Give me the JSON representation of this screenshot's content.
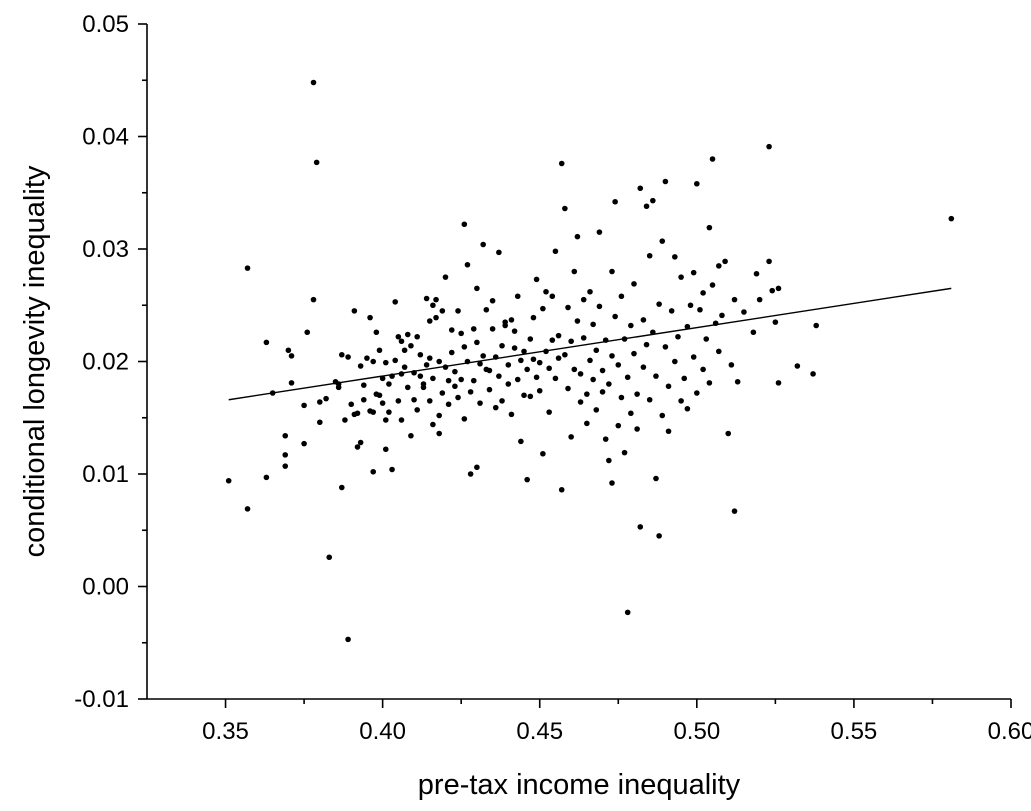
{
  "chart_data": {
    "type": "scatter",
    "title": "",
    "xlabel": "pre-tax income inequality",
    "ylabel": "conditional longevity inequality",
    "xlim": [
      0.325,
      0.6
    ],
    "ylim": [
      -0.01,
      0.05
    ],
    "x_ticks": [
      "0.35",
      "0.40",
      "0.45",
      "0.50",
      "0.55",
      "0.60"
    ],
    "x_tick_values": [
      0.35,
      0.4,
      0.45,
      0.5,
      0.55,
      0.6
    ],
    "y_ticks": [
      "-0.01",
      "0.00",
      "0.01",
      "0.02",
      "0.03",
      "0.04",
      "0.05"
    ],
    "y_tick_values": [
      -0.01,
      0.0,
      0.01,
      0.02,
      0.03,
      0.04,
      0.05
    ],
    "grid": false,
    "legend": "none",
    "fit_line": {
      "x": [
        0.351,
        0.581
      ],
      "y": [
        0.0166,
        0.0265
      ]
    },
    "points": [
      [
        0.351,
        0.0094
      ],
      [
        0.357,
        0.0069
      ],
      [
        0.357,
        0.0283
      ],
      [
        0.363,
        0.0097
      ],
      [
        0.363,
        0.0217
      ],
      [
        0.365,
        0.0172
      ],
      [
        0.369,
        0.0107
      ],
      [
        0.369,
        0.0117
      ],
      [
        0.369,
        0.0134
      ],
      [
        0.37,
        0.021
      ],
      [
        0.371,
        0.0205
      ],
      [
        0.371,
        0.0181
      ],
      [
        0.375,
        0.0161
      ],
      [
        0.375,
        0.0127
      ],
      [
        0.376,
        0.0226
      ],
      [
        0.378,
        0.0448
      ],
      [
        0.378,
        0.0255
      ],
      [
        0.379,
        0.0377
      ],
      [
        0.38,
        0.0146
      ],
      [
        0.38,
        0.0164
      ],
      [
        0.382,
        0.0167
      ],
      [
        0.383,
        0.0026
      ],
      [
        0.385,
        0.0182
      ],
      [
        0.386,
        0.018
      ],
      [
        0.386,
        0.0177
      ],
      [
        0.387,
        0.0088
      ],
      [
        0.387,
        0.0206
      ],
      [
        0.388,
        0.0148
      ],
      [
        0.389,
        -0.0047
      ],
      [
        0.389,
        0.0204
      ],
      [
        0.39,
        0.0162
      ],
      [
        0.391,
        0.0153
      ],
      [
        0.391,
        0.0245
      ],
      [
        0.392,
        0.0124
      ],
      [
        0.392,
        0.0154
      ],
      [
        0.393,
        0.0196
      ],
      [
        0.393,
        0.0128
      ],
      [
        0.394,
        0.0179
      ],
      [
        0.394,
        0.0166
      ],
      [
        0.395,
        0.0203
      ],
      [
        0.396,
        0.0156
      ],
      [
        0.396,
        0.0239
      ],
      [
        0.397,
        0.0155
      ],
      [
        0.397,
        0.0102
      ],
      [
        0.397,
        0.02
      ],
      [
        0.398,
        0.0226
      ],
      [
        0.398,
        0.0171
      ],
      [
        0.399,
        0.017
      ],
      [
        0.399,
        0.021
      ],
      [
        0.4,
        0.0163
      ],
      [
        0.4,
        0.0185
      ],
      [
        0.401,
        0.0148
      ],
      [
        0.401,
        0.0199
      ],
      [
        0.401,
        0.0122
      ],
      [
        0.402,
        0.018
      ],
      [
        0.402,
        0.0155
      ],
      [
        0.403,
        0.0187
      ],
      [
        0.403,
        0.0104
      ],
      [
        0.404,
        0.0201
      ],
      [
        0.404,
        0.0253
      ],
      [
        0.405,
        0.0165
      ],
      [
        0.405,
        0.0222
      ],
      [
        0.406,
        0.0189
      ],
      [
        0.406,
        0.0218
      ],
      [
        0.406,
        0.0148
      ],
      [
        0.407,
        0.0195
      ],
      [
        0.407,
        0.021
      ],
      [
        0.408,
        0.0224
      ],
      [
        0.408,
        0.0177
      ],
      [
        0.409,
        0.0214
      ],
      [
        0.409,
        0.0134
      ],
      [
        0.41,
        0.019
      ],
      [
        0.41,
        0.0166
      ],
      [
        0.411,
        0.0157
      ],
      [
        0.411,
        0.0222
      ],
      [
        0.412,
        0.0187
      ],
      [
        0.412,
        0.0206
      ],
      [
        0.413,
        0.018
      ],
      [
        0.413,
        0.0177
      ],
      [
        0.414,
        0.0197
      ],
      [
        0.414,
        0.0256
      ],
      [
        0.415,
        0.0165
      ],
      [
        0.415,
        0.0203
      ],
      [
        0.415,
        0.0236
      ],
      [
        0.416,
        0.0144
      ],
      [
        0.416,
        0.025
      ],
      [
        0.416,
        0.0185
      ],
      [
        0.417,
        0.0255
      ],
      [
        0.417,
        0.0239
      ],
      [
        0.418,
        0.0152
      ],
      [
        0.418,
        0.02
      ],
      [
        0.418,
        0.0136
      ],
      [
        0.419,
        0.0172
      ],
      [
        0.419,
        0.0245
      ],
      [
        0.42,
        0.0195
      ],
      [
        0.42,
        0.0275
      ],
      [
        0.421,
        0.0183
      ],
      [
        0.421,
        0.0162
      ],
      [
        0.422,
        0.0208
      ],
      [
        0.422,
        0.0228
      ],
      [
        0.423,
        0.0178
      ],
      [
        0.423,
        0.0191
      ],
      [
        0.424,
        0.0245
      ],
      [
        0.424,
        0.0168
      ],
      [
        0.425,
        0.0225
      ],
      [
        0.425,
        0.0184
      ],
      [
        0.426,
        0.0322
      ],
      [
        0.426,
        0.0149
      ],
      [
        0.426,
        0.0213
      ],
      [
        0.427,
        0.0286
      ],
      [
        0.427,
        0.02
      ],
      [
        0.428,
        0.0173
      ],
      [
        0.428,
        0.01
      ],
      [
        0.429,
        0.0229
      ],
      [
        0.429,
        0.0183
      ],
      [
        0.43,
        0.0106
      ],
      [
        0.43,
        0.0265
      ],
      [
        0.43,
        0.0217
      ],
      [
        0.431,
        0.0198
      ],
      [
        0.431,
        0.0163
      ],
      [
        0.432,
        0.0205
      ],
      [
        0.432,
        0.0304
      ],
      [
        0.433,
        0.0193
      ],
      [
        0.433,
        0.0246
      ],
      [
        0.434,
        0.0192
      ],
      [
        0.434,
        0.0175
      ],
      [
        0.435,
        0.0229
      ],
      [
        0.435,
        0.0254
      ],
      [
        0.436,
        0.0159
      ],
      [
        0.436,
        0.0204
      ],
      [
        0.437,
        0.0297
      ],
      [
        0.437,
        0.0187
      ],
      [
        0.438,
        0.0214
      ],
      [
        0.438,
        0.0165
      ],
      [
        0.439,
        0.0235
      ],
      [
        0.439,
        0.0232
      ],
      [
        0.44,
        0.018
      ],
      [
        0.44,
        0.0197
      ],
      [
        0.441,
        0.0237
      ],
      [
        0.441,
        0.0153
      ],
      [
        0.442,
        0.0212
      ],
      [
        0.442,
        0.0227
      ],
      [
        0.443,
        0.0184
      ],
      [
        0.443,
        0.0258
      ],
      [
        0.444,
        0.0129
      ],
      [
        0.444,
        0.0201
      ],
      [
        0.445,
        0.0209
      ],
      [
        0.445,
        0.017
      ],
      [
        0.446,
        0.0193
      ],
      [
        0.446,
        0.0095
      ],
      [
        0.447,
        0.022
      ],
      [
        0.447,
        0.0169
      ],
      [
        0.448,
        0.0202
      ],
      [
        0.448,
        0.0239
      ],
      [
        0.449,
        0.0186
      ],
      [
        0.449,
        0.0273
      ],
      [
        0.45,
        0.0199
      ],
      [
        0.45,
        0.0174
      ],
      [
        0.451,
        0.0118
      ],
      [
        0.451,
        0.0247
      ],
      [
        0.452,
        0.0209
      ],
      [
        0.452,
        0.0262
      ],
      [
        0.453,
        0.0194
      ],
      [
        0.453,
        0.0155
      ],
      [
        0.454,
        0.0219
      ],
      [
        0.454,
        0.0258
      ],
      [
        0.455,
        0.0298
      ],
      [
        0.455,
        0.0185
      ],
      [
        0.456,
        0.0203
      ],
      [
        0.456,
        0.0223
      ],
      [
        0.457,
        0.0086
      ],
      [
        0.457,
        0.0376
      ],
      [
        0.458,
        0.0336
      ],
      [
        0.458,
        0.0206
      ],
      [
        0.459,
        0.0176
      ],
      [
        0.459,
        0.0248
      ],
      [
        0.46,
        0.0133
      ],
      [
        0.46,
        0.0218
      ],
      [
        0.461,
        0.028
      ],
      [
        0.461,
        0.0193
      ],
      [
        0.462,
        0.0311
      ],
      [
        0.462,
        0.0236
      ],
      [
        0.463,
        0.0189
      ],
      [
        0.463,
        0.0164
      ],
      [
        0.464,
        0.0221
      ],
      [
        0.464,
        0.0255
      ],
      [
        0.465,
        0.0171
      ],
      [
        0.465,
        0.0145
      ],
      [
        0.466,
        0.0201
      ],
      [
        0.466,
        0.0262
      ],
      [
        0.467,
        0.0184
      ],
      [
        0.467,
        0.0233
      ],
      [
        0.468,
        0.021
      ],
      [
        0.468,
        0.0157
      ],
      [
        0.469,
        0.0315
      ],
      [
        0.469,
        0.0249
      ],
      [
        0.47,
        0.0192
      ],
      [
        0.47,
        0.0173
      ],
      [
        0.471,
        0.0219
      ],
      [
        0.471,
        0.0131
      ],
      [
        0.472,
        0.018
      ],
      [
        0.472,
        0.0112
      ],
      [
        0.473,
        0.028
      ],
      [
        0.473,
        0.0205
      ],
      [
        0.473,
        0.0092
      ],
      [
        0.474,
        0.0342
      ],
      [
        0.474,
        0.024
      ],
      [
        0.475,
        0.0143
      ],
      [
        0.475,
        0.0197
      ],
      [
        0.476,
        0.0168
      ],
      [
        0.476,
        0.0258
      ],
      [
        0.477,
        0.0119
      ],
      [
        0.477,
        0.022
      ],
      [
        0.478,
        -0.0023
      ],
      [
        0.478,
        0.0186
      ],
      [
        0.479,
        0.0232
      ],
      [
        0.479,
        0.0154
      ],
      [
        0.48,
        0.0269
      ],
      [
        0.48,
        0.0207
      ],
      [
        0.481,
        0.014
      ],
      [
        0.481,
        0.0171
      ],
      [
        0.482,
        0.0354
      ],
      [
        0.482,
        0.0053
      ],
      [
        0.483,
        0.0237
      ],
      [
        0.483,
        0.0195
      ],
      [
        0.484,
        0.0338
      ],
      [
        0.484,
        0.0215
      ],
      [
        0.485,
        0.0166
      ],
      [
        0.485,
        0.0294
      ],
      [
        0.486,
        0.0226
      ],
      [
        0.486,
        0.0343
      ],
      [
        0.487,
        0.0096
      ],
      [
        0.487,
        0.0187
      ],
      [
        0.488,
        0.0045
      ],
      [
        0.488,
        0.0251
      ],
      [
        0.489,
        0.0307
      ],
      [
        0.489,
        0.0152
      ],
      [
        0.49,
        0.036
      ],
      [
        0.49,
        0.0213
      ],
      [
        0.491,
        0.0178
      ],
      [
        0.491,
        0.0138
      ],
      [
        0.492,
        0.0245
      ],
      [
        0.493,
        0.0293
      ],
      [
        0.493,
        0.02
      ],
      [
        0.494,
        0.0222
      ],
      [
        0.495,
        0.0165
      ],
      [
        0.495,
        0.0275
      ],
      [
        0.496,
        0.0185
      ],
      [
        0.497,
        0.0231
      ],
      [
        0.497,
        0.0158
      ],
      [
        0.498,
        0.025
      ],
      [
        0.499,
        0.0279
      ],
      [
        0.499,
        0.0204
      ],
      [
        0.5,
        0.0358
      ],
      [
        0.5,
        0.0172
      ],
      [
        0.501,
        0.0246
      ],
      [
        0.502,
        0.0193
      ],
      [
        0.502,
        0.0261
      ],
      [
        0.503,
        0.022
      ],
      [
        0.504,
        0.0319
      ],
      [
        0.504,
        0.0181
      ],
      [
        0.505,
        0.038
      ],
      [
        0.505,
        0.0268
      ],
      [
        0.506,
        0.0234
      ],
      [
        0.507,
        0.0285
      ],
      [
        0.507,
        0.0209
      ],
      [
        0.508,
        0.0241
      ],
      [
        0.509,
        0.0289
      ],
      [
        0.51,
        0.0136
      ],
      [
        0.511,
        0.0197
      ],
      [
        0.512,
        0.0067
      ],
      [
        0.512,
        0.0255
      ],
      [
        0.513,
        0.0182
      ],
      [
        0.515,
        0.0244
      ],
      [
        0.518,
        0.0226
      ],
      [
        0.519,
        0.0278
      ],
      [
        0.52,
        0.0255
      ],
      [
        0.523,
        0.0391
      ],
      [
        0.523,
        0.0289
      ],
      [
        0.524,
        0.0263
      ],
      [
        0.525,
        0.0235
      ],
      [
        0.526,
        0.0181
      ],
      [
        0.526,
        0.0265
      ],
      [
        0.532,
        0.0196
      ],
      [
        0.537,
        0.0189
      ],
      [
        0.538,
        0.0232
      ],
      [
        0.581,
        0.0327
      ]
    ]
  }
}
